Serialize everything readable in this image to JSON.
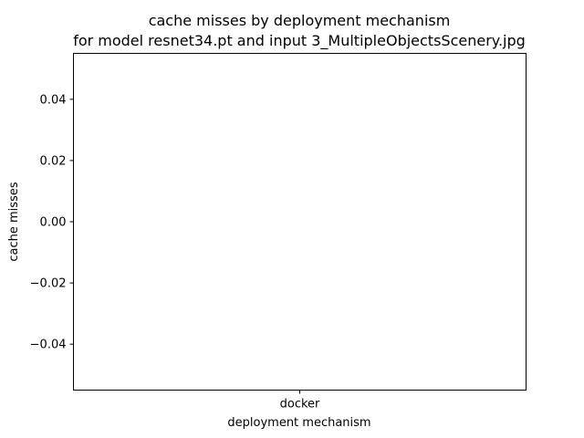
{
  "chart_data": {
    "type": "bar",
    "title": "cache misses by deployment mechanism",
    "subtitle": "for model resnet34.pt and input 3_MultipleObjectsScenery.jpg",
    "xlabel": "deployment mechanism",
    "ylabel": "cache misses",
    "categories": [
      "docker"
    ],
    "values": [
      0
    ],
    "ylim": [
      -0.055,
      0.055
    ],
    "yticks": [
      -0.04,
      -0.02,
      0.0,
      0.02,
      0.04
    ],
    "ytick_labels": [
      "−0.04",
      "−0.02",
      "0.00",
      "0.02",
      "0.04"
    ],
    "grid": false,
    "legend": "none"
  }
}
